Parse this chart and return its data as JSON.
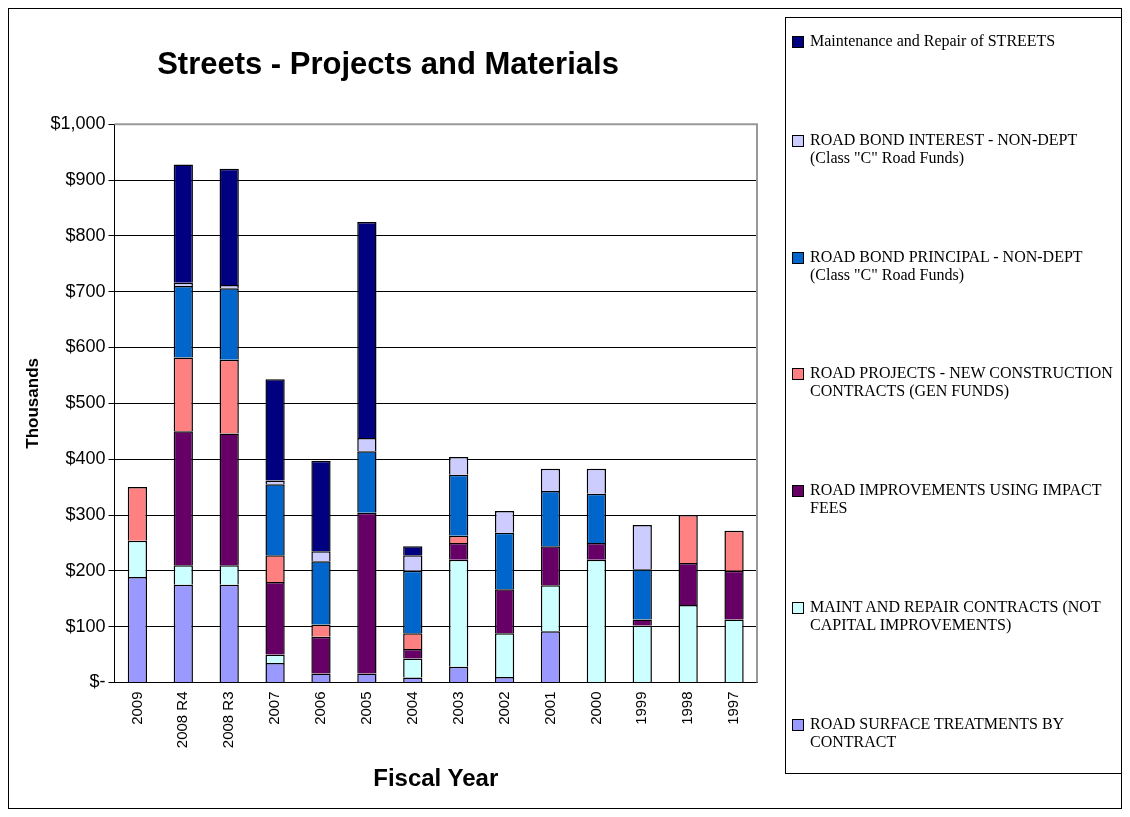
{
  "chart_data": {
    "type": "bar",
    "title": "Streets - Projects and Materials",
    "xlabel": "Fiscal Year",
    "ylabel": "Thousands",
    "categories": [
      "2009",
      "2008 R4",
      "2008 R3",
      "2007",
      "2006",
      "2005",
      "2004",
      "2003",
      "2002",
      "2001",
      "2000",
      "1999",
      "1998",
      "1997"
    ],
    "stacked": true,
    "grid": "y",
    "legend": "right",
    "ylim": [
      0,
      1000
    ],
    "yticks": [
      {
        "value": 0,
        "label": "$-"
      },
      {
        "value": 100,
        "label": "$100"
      },
      {
        "value": 200,
        "label": "$200"
      },
      {
        "value": 300,
        "label": "$300"
      },
      {
        "value": 400,
        "label": "$400"
      },
      {
        "value": 500,
        "label": "$500"
      },
      {
        "value": 600,
        "label": "$600"
      },
      {
        "value": 700,
        "label": "$700"
      },
      {
        "value": 800,
        "label": "$800"
      },
      {
        "value": 900,
        "label": "$900"
      },
      {
        "value": 1000,
        "label": "$1,000"
      }
    ],
    "series": [
      {
        "name": "ROAD SURFACE TREATMENTS BY CONTRACT",
        "color": "#9999ff",
        "values": [
          189,
          175,
          175,
          35,
          16,
          16,
          9,
          28,
          10,
          92,
          0,
          0,
          0,
          0
        ]
      },
      {
        "name": "MAINT AND REPAIR CONTRACTS (NOT CAPITAL IMPROVEMENTS)",
        "color": "#ccffff",
        "values": [
          65,
          35,
          35,
          15,
          0,
          0,
          34,
          192,
          78,
          82,
          220,
          102,
          139,
          113
        ]
      },
      {
        "name": "ROAD IMPROVEMENTS USING IMPACT FEES",
        "color": "#660066",
        "values": [
          0,
          240,
          236,
          130,
          66,
          288,
          17,
          30,
          79,
          70,
          30,
          11,
          75,
          87
        ]
      },
      {
        "name": "ROAD PROJECTS - NEW CONSTRUCTION CONTRACTS (GEN FUNDS)",
        "color": "#ff8080",
        "values": [
          96,
          132,
          132,
          48,
          22,
          0,
          28,
          13,
          0,
          0,
          0,
          0,
          86,
          72
        ]
      },
      {
        "name": "ROAD BOND PRINCIPAL - NON-DEPT  (Class \"C\" Road Funds)",
        "color": "#0066cc",
        "values": [
          0,
          128,
          128,
          127,
          113,
          110,
          112,
          109,
          101,
          99,
          88,
          90,
          0,
          0
        ]
      },
      {
        "name": "ROAD BOND INTEREST - NON-DEPT  (Class \"C\" Road Funds)",
        "color": "#ccccff",
        "values": [
          0,
          6,
          6,
          7,
          18,
          24,
          28,
          32,
          39,
          40,
          45,
          79,
          0,
          0
        ]
      },
      {
        "name": "Maintenance and Repair of STREETS",
        "color": "#000080",
        "values": [
          0,
          212,
          208,
          181,
          162,
          387,
          16,
          0,
          0,
          0,
          0,
          0,
          0,
          0
        ]
      }
    ]
  }
}
